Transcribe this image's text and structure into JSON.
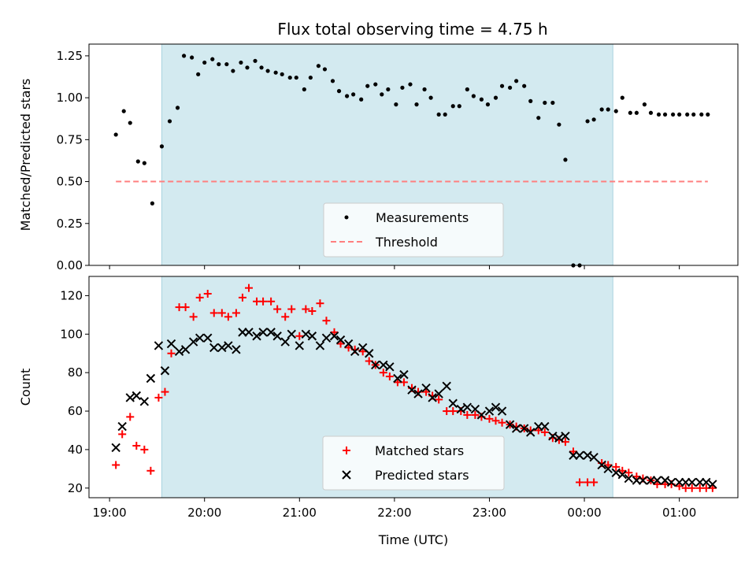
{
  "chart_data": [
    {
      "type": "scatter",
      "title": "Flux total observing time = 4.75 h",
      "xlabel": "",
      "ylabel": "Matched/Predicted stars",
      "x_unit": "minutes after 00:00 UTC of the observing night (values past 24:00 wrap to next day)",
      "xlim": [
        "18:47",
        "01:37"
      ],
      "ylim": [
        0,
        1.32
      ],
      "yticks": [
        "0.00",
        "0.25",
        "0.50",
        "0.75",
        "1.00",
        "1.25"
      ],
      "xticks": [
        "19:00",
        "20:00",
        "21:00",
        "22:00",
        "23:00",
        "00:00",
        "01:00"
      ],
      "shaded_interval": [
        "19:33",
        "00:18"
      ],
      "shade_color": "#d3eaf0",
      "legend_position": "lower-center",
      "series": [
        {
          "name": "Measurements",
          "color": "#000000",
          "marker": "dot",
          "x": [
            "19:04",
            "19:09",
            "19:13",
            "19:18",
            "19:22",
            "19:27",
            "19:33",
            "19:38",
            "19:43",
            "19:47",
            "19:52",
            "19:56",
            "20:00",
            "20:05",
            "20:09",
            "20:14",
            "20:18",
            "20:23",
            "20:27",
            "20:32",
            "20:36",
            "20:40",
            "20:45",
            "20:49",
            "20:54",
            "20:58",
            "21:03",
            "21:07",
            "21:12",
            "21:16",
            "21:21",
            "21:25",
            "21:30",
            "21:34",
            "21:39",
            "21:43",
            "21:48",
            "21:52",
            "21:56",
            "22:01",
            "22:05",
            "22:10",
            "22:14",
            "22:19",
            "22:23",
            "22:28",
            "22:32",
            "22:37",
            "22:41",
            "22:46",
            "22:50",
            "22:55",
            "22:59",
            "23:04",
            "23:08",
            "23:13",
            "23:17",
            "23:22",
            "23:26",
            "23:31",
            "23:35",
            "23:40",
            "23:44",
            "23:48",
            "23:53",
            "23:57",
            "00:02",
            "00:06",
            "00:11",
            "00:15",
            "00:20",
            "00:24",
            "00:29",
            "00:33",
            "00:38",
            "00:42",
            "00:47",
            "00:51",
            "00:56",
            "01:00",
            "01:05",
            "01:09",
            "01:14",
            "01:18"
          ],
          "y": [
            0.78,
            0.92,
            0.85,
            0.62,
            0.61,
            0.37,
            0.71,
            0.86,
            0.94,
            1.25,
            1.24,
            1.14,
            1.21,
            1.23,
            1.2,
            1.2,
            1.16,
            1.21,
            1.18,
            1.22,
            1.18,
            1.16,
            1.15,
            1.14,
            1.12,
            1.12,
            1.05,
            1.12,
            1.19,
            1.17,
            1.1,
            1.04,
            1.01,
            1.02,
            0.99,
            1.07,
            1.08,
            1.02,
            1.05,
            0.96,
            1.06,
            1.08,
            0.96,
            1.05,
            1.0,
            0.9,
            0.9,
            0.95,
            0.95,
            1.05,
            1.01,
            0.99,
            0.96,
            1.0,
            1.07,
            1.06,
            1.1,
            1.07,
            0.98,
            0.88,
            0.97,
            0.97,
            0.84,
            0.63,
            0.0,
            0.0,
            0.86,
            0.87,
            0.93,
            0.93,
            0.92,
            1.0,
            0.91,
            0.91,
            0.96,
            0.91,
            0.9,
            0.9,
            0.9,
            0.9,
            0.9,
            0.9,
            0.9,
            0.9
          ]
        },
        {
          "name": "Threshold",
          "color": "#ff7f7f",
          "style": "dashed",
          "x": [
            "19:04",
            "01:18"
          ],
          "y": [
            0.5,
            0.5
          ]
        }
      ]
    },
    {
      "type": "scatter",
      "title": "",
      "xlabel": "Time (UTC)",
      "ylabel": "Count",
      "xlim": [
        "18:47",
        "01:37"
      ],
      "ylim": [
        15,
        130
      ],
      "yticks": [
        "20",
        "40",
        "60",
        "80",
        "100",
        "120"
      ],
      "xticks": [
        "19:00",
        "20:00",
        "21:00",
        "22:00",
        "23:00",
        "00:00",
        "01:00"
      ],
      "shaded_interval": [
        "19:33",
        "00:18"
      ],
      "shade_color": "#d3eaf0",
      "legend_position": "lower-center",
      "series": [
        {
          "name": "Matched stars",
          "color": "#ff0000",
          "marker": "plus",
          "x": [
            "19:04",
            "19:08",
            "19:13",
            "19:17",
            "19:22",
            "19:26",
            "19:31",
            "19:35",
            "19:39",
            "19:44",
            "19:48",
            "19:53",
            "19:57",
            "20:02",
            "20:06",
            "20:11",
            "20:15",
            "20:20",
            "20:24",
            "20:28",
            "20:33",
            "20:37",
            "20:42",
            "20:46",
            "20:51",
            "20:55",
            "21:00",
            "21:04",
            "21:08",
            "21:13",
            "21:17",
            "21:22",
            "21:26",
            "21:31",
            "21:35",
            "21:40",
            "21:44",
            "21:48",
            "21:53",
            "21:57",
            "22:02",
            "22:06",
            "22:11",
            "22:15",
            "22:20",
            "22:24",
            "22:28",
            "22:33",
            "22:37",
            "22:42",
            "22:46",
            "22:51",
            "22:55",
            "23:00",
            "23:04",
            "23:08",
            "23:13",
            "23:17",
            "23:22",
            "23:26",
            "23:31",
            "23:35",
            "23:40",
            "23:44",
            "23:48",
            "23:53",
            "23:57",
            "00:02",
            "00:06",
            "00:11",
            "00:15",
            "00:20",
            "00:24",
            "00:28",
            "00:33",
            "00:37",
            "00:42",
            "00:46",
            "00:51",
            "00:55",
            "01:00",
            "01:04",
            "01:08",
            "01:13",
            "01:17",
            "01:21"
          ],
          "y": [
            32,
            48,
            57,
            42,
            40,
            29,
            67,
            70,
            90,
            114,
            114,
            109,
            119,
            121,
            111,
            111,
            109,
            111,
            119,
            124,
            117,
            117,
            117,
            113,
            109,
            113,
            99,
            113,
            112,
            116,
            107,
            101,
            95,
            93,
            92,
            91,
            86,
            84,
            80,
            78,
            75,
            75,
            72,
            70,
            70,
            68,
            66,
            60,
            60,
            60,
            58,
            58,
            57,
            56,
            55,
            54,
            53,
            52,
            51,
            50,
            50,
            49,
            46,
            45,
            44,
            39,
            23,
            23,
            23,
            33,
            32,
            31,
            29,
            28,
            26,
            25,
            24,
            22,
            22,
            22,
            21,
            20,
            20,
            20,
            20,
            20
          ]
        },
        {
          "name": "Predicted stars",
          "color": "#000000",
          "marker": "x",
          "x": [
            "19:04",
            "19:08",
            "19:13",
            "19:17",
            "19:22",
            "19:26",
            "19:31",
            "19:35",
            "19:39",
            "19:44",
            "19:48",
            "19:53",
            "19:57",
            "20:02",
            "20:06",
            "20:11",
            "20:15",
            "20:20",
            "20:24",
            "20:28",
            "20:33",
            "20:37",
            "20:42",
            "20:46",
            "20:51",
            "20:55",
            "21:00",
            "21:04",
            "21:08",
            "21:13",
            "21:17",
            "21:22",
            "21:26",
            "21:31",
            "21:35",
            "21:40",
            "21:44",
            "21:48",
            "21:53",
            "21:57",
            "22:02",
            "22:06",
            "22:11",
            "22:15",
            "22:20",
            "22:24",
            "22:28",
            "22:33",
            "22:37",
            "22:42",
            "22:46",
            "22:51",
            "22:55",
            "23:00",
            "23:04",
            "23:08",
            "23:13",
            "23:17",
            "23:22",
            "23:26",
            "23:31",
            "23:35",
            "23:40",
            "23:44",
            "23:48",
            "23:53",
            "23:57",
            "00:02",
            "00:06",
            "00:11",
            "00:15",
            "00:20",
            "00:24",
            "00:28",
            "00:33",
            "00:37",
            "00:42",
            "00:46",
            "00:51",
            "00:55",
            "01:00",
            "01:04",
            "01:08",
            "01:13",
            "01:17",
            "01:21"
          ],
          "y": [
            41,
            52,
            67,
            68,
            65,
            77,
            94,
            81,
            95,
            91,
            92,
            96,
            98,
            98,
            93,
            93,
            94,
            92,
            101,
            101,
            99,
            101,
            101,
            99,
            96,
            100,
            94,
            100,
            99,
            94,
            98,
            99,
            97,
            95,
            91,
            93,
            90,
            84,
            84,
            83,
            77,
            79,
            71,
            69,
            72,
            67,
            69,
            73,
            64,
            61,
            62,
            61,
            58,
            60,
            62,
            60,
            53,
            51,
            51,
            49,
            52,
            52,
            47,
            46,
            47,
            37,
            37,
            37,
            36,
            32,
            30,
            28,
            27,
            25,
            24,
            24,
            24,
            24,
            24,
            23,
            23,
            23,
            23,
            23,
            23,
            22
          ]
        }
      ]
    }
  ]
}
